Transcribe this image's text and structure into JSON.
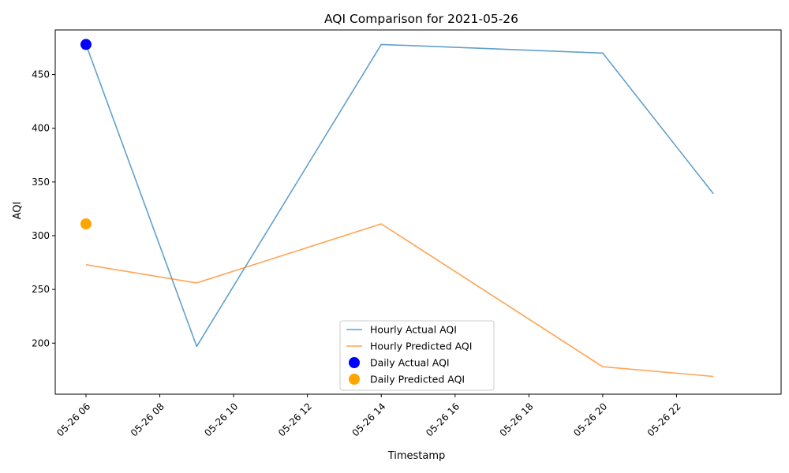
{
  "chart_data": {
    "type": "line",
    "title": "AQI Comparison for 2021-05-26",
    "xlabel": "Timestamp",
    "ylabel": "AQI",
    "xlim": [
      "2021-05-26 05:10",
      "2021-05-27 00:50"
    ],
    "ylim": [
      152.5,
      491.5
    ],
    "xticks": [
      "05-26 06",
      "05-26 08",
      "05-26 10",
      "05-26 12",
      "05-26 14",
      "05-26 16",
      "05-26 18",
      "05-26 20",
      "05-26 22"
    ],
    "yticks": [
      200,
      250,
      300,
      350,
      400,
      450
    ],
    "grid": false,
    "legend_position": "lower center",
    "series": [
      {
        "name": "Hourly Actual AQI",
        "kind": "line",
        "color": "#1f77b4",
        "points": [
          {
            "x": "2021-05-26 06:00",
            "y": 478
          },
          {
            "x": "2021-05-26 09:00",
            "y": 197
          },
          {
            "x": "2021-05-26 14:00",
            "y": 478
          },
          {
            "x": "2021-05-26 20:00",
            "y": 470
          },
          {
            "x": "2021-05-26 23:00",
            "y": 339
          }
        ]
      },
      {
        "name": "Hourly Predicted AQI",
        "kind": "line",
        "color": "#ff7f0e",
        "points": [
          {
            "x": "2021-05-26 06:00",
            "y": 273
          },
          {
            "x": "2021-05-26 09:00",
            "y": 256
          },
          {
            "x": "2021-05-26 14:00",
            "y": 311
          },
          {
            "x": "2021-05-26 20:00",
            "y": 178
          },
          {
            "x": "2021-05-26 23:00",
            "y": 169
          }
        ]
      },
      {
        "name": "Daily Actual AQI",
        "kind": "scatter",
        "color": "#0000ff",
        "points": [
          {
            "x": "2021-05-26 06:00",
            "y": 478
          }
        ]
      },
      {
        "name": "Daily Predicted AQI",
        "kind": "scatter",
        "color": "#ffa500",
        "points": [
          {
            "x": "2021-05-26 06:00",
            "y": 311
          }
        ]
      }
    ]
  }
}
